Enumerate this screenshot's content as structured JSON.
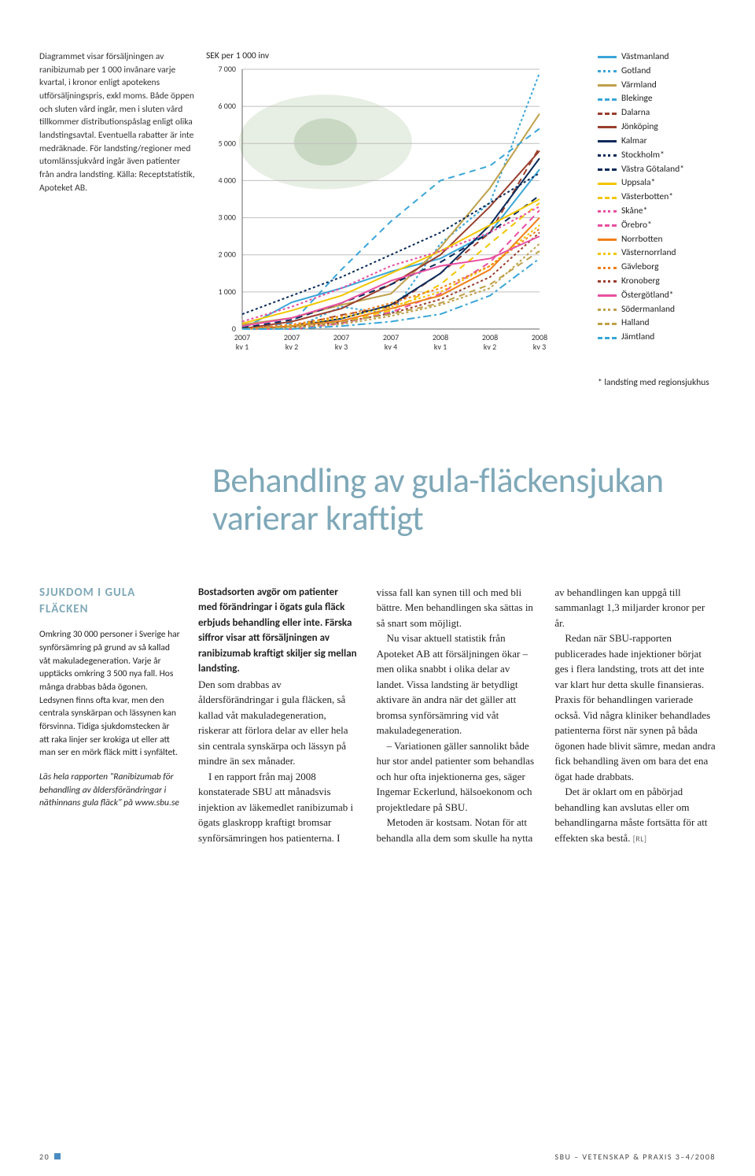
{
  "caption_text": "Diagrammet visar försäljningen av ranibizumab per 1 000 invånare varje kvartal, i kronor enligt apotekens utförsäljningspris, exkl moms. Både öppen och sluten vård ingår, men i sluten vård tillkommer distributionspåslag enligt olika landstingsavtal. Eventuella rabatter är inte medräknade. För landsting/regioner med utomlänssjukvård ingår även patienter från andra landsting. Källa: Receptstatistik, Apoteket AB.",
  "chart": {
    "type": "line",
    "y_title": "SEK per 1 000 inv",
    "ylim": [
      0,
      7000
    ],
    "ytick_step": 1000,
    "yticks": [
      "0",
      "1 000",
      "2 000",
      "3 000",
      "4 000",
      "5 000",
      "6 000",
      "7 000"
    ],
    "x_categories": [
      "2007\nkv 1",
      "2007\nkv 2",
      "2007\nkv 3",
      "2007\nkv 4",
      "2008\nkv 1",
      "2008\nkv 2",
      "2008\nkv 3"
    ],
    "background_color": "#ffffff",
    "grid_color": "#bfbfbf",
    "axis_color": "#666666",
    "tick_fontsize": 10,
    "watermark_eye": true,
    "series": [
      {
        "name": "Västmanland",
        "color": "#3aa6d8",
        "dash": "",
        "values": [
          0,
          720,
          1100,
          1550,
          1900,
          2600,
          4300
        ]
      },
      {
        "name": "Gotland",
        "color": "#3aa6d8",
        "dash": "3,3",
        "values": [
          0,
          0,
          600,
          400,
          2300,
          3400,
          6900
        ]
      },
      {
        "name": "Värmland",
        "color": "#bfa14a",
        "dash": "",
        "values": [
          120,
          300,
          650,
          950,
          2200,
          3800,
          5800
        ]
      },
      {
        "name": "Blekinge",
        "color": "#3aa6d8",
        "dash": "8,6",
        "values": [
          40,
          160,
          1600,
          2900,
          4000,
          4400,
          5400
        ]
      },
      {
        "name": "Dalarna",
        "color": "#9a3f2e",
        "dash": "8,6",
        "values": [
          30,
          80,
          380,
          600,
          1500,
          2600,
          4900
        ]
      },
      {
        "name": "Jönköping",
        "color": "#9a3f2e",
        "dash": "",
        "values": [
          10,
          200,
          550,
          1200,
          2000,
          3300,
          4800
        ]
      },
      {
        "name": "Kalmar",
        "color": "#0a2a5a",
        "dash": "",
        "values": [
          0,
          70,
          280,
          650,
          1500,
          2800,
          4600
        ]
      },
      {
        "name": "Stockholm*",
        "color": "#0a2a5a",
        "dash": "3,3",
        "values": [
          400,
          900,
          1400,
          2000,
          2600,
          3400,
          4200
        ]
      },
      {
        "name": "Västra Götaland*",
        "color": "#0a2a5a",
        "dash": "8,6",
        "values": [
          30,
          250,
          700,
          1200,
          1800,
          2600,
          3600
        ]
      },
      {
        "name": "Uppsala*",
        "color": "#f2c600",
        "dash": "",
        "values": [
          150,
          500,
          900,
          1500,
          2100,
          2800,
          3500
        ]
      },
      {
        "name": "Västerbotten*",
        "color": "#f2c600",
        "dash": "8,6",
        "values": [
          0,
          60,
          200,
          500,
          1200,
          2300,
          3400
        ]
      },
      {
        "name": "Skåne*",
        "color": "#e94fa0",
        "dash": "3,3",
        "values": [
          200,
          600,
          1100,
          1700,
          2100,
          2600,
          3300
        ]
      },
      {
        "name": "Örebro*",
        "color": "#e94fa0",
        "dash": "8,6",
        "values": [
          0,
          0,
          150,
          450,
          950,
          1800,
          3200
        ]
      },
      {
        "name": "Norrbotten",
        "color": "#f07f1a",
        "dash": "",
        "values": [
          0,
          80,
          220,
          550,
          900,
          1600,
          3000
        ]
      },
      {
        "name": "Västernorrland",
        "color": "#f2c600",
        "dash": "3,3",
        "values": [
          0,
          100,
          300,
          600,
          1000,
          1700,
          2800
        ]
      },
      {
        "name": "Gävleborg",
        "color": "#f07f1a",
        "dash": "3,3",
        "values": [
          0,
          120,
          350,
          700,
          1100,
          1700,
          2700
        ]
      },
      {
        "name": "Kronoberg",
        "color": "#9a3f2e",
        "dash": "3,3",
        "values": [
          0,
          50,
          180,
          420,
          800,
          1400,
          2600
        ]
      },
      {
        "name": "Östergötland*",
        "color": "#e94fa0",
        "dash": "",
        "values": [
          80,
          300,
          700,
          1300,
          1700,
          1900,
          2500
        ]
      },
      {
        "name": "Södermanland",
        "color": "#bfa14a",
        "dash": "3,3",
        "values": [
          0,
          30,
          130,
          350,
          650,
          1100,
          2300
        ]
      },
      {
        "name": "Halland",
        "color": "#bfa14a",
        "dash": "8,6",
        "values": [
          0,
          70,
          190,
          400,
          700,
          1200,
          2100
        ]
      },
      {
        "name": "Jämtland",
        "color": "#3aa6d8",
        "dash": "10,4,3,4",
        "values": [
          0,
          0,
          80,
          200,
          400,
          900,
          1900
        ]
      }
    ]
  },
  "legend_note": "* landsting med regionsjukhus",
  "headline": "Behandling av gula-fläcken­sjukan varierar kraftigt",
  "sidebar": {
    "title": "SJUKDOM I GULA FLÄCKEN",
    "para1": "Omkring 30 000 personer i Sverige har synförsämring på grund av så kallad våt makuladegeneration. Varje år upptäcks omkring 3 500 nya fall. Hos många drabbas båda ögonen. Ledsynen finns ofta kvar, men den centrala synskärpan och lässynen kan försvinna. Tidiga sjukdomstecken är att raka linjer ser krokiga ut eller att man ser en mörk fläck mitt i synfältet.",
    "para2": "Läs hela rapporten \"Ranibizumab för behandling av åldersförändringar i näthinnans gula fläck\" på www.sbu.se"
  },
  "article": {
    "lead": "Bostadsorten avgör om patienter med förändringar i ögats gula fläck erbjuds behandling eller inte. Färska siffror visar att försäljningen av ranibizumab kraftigt skiljer sig mellan landsting.",
    "p1": "Den som drabbas av åldersförändringar i gula fläcken, så kallad våt makuladegeneration, riskerar att förlora delar av eller hela sin centrala synskärpa och lässyn på mindre än sex månader.",
    "p2": "I en rapport från maj 2008 konstaterade SBU att månadsvis injektion av läkemedlet ranibizumab i ögats glaskropp kraftigt bromsar synförsämringen hos patien­terna. I vissa fall kan synen till och med bli bättre. Men behandlingen ska sättas in så snart som möjligt.",
    "p3": "Nu visar aktuell statistik från Apoteket AB att försäljningen ökar – men olika snabbt i olika delar av landet. Vissa landsting är betydligt aktivare än andra när det gäller att bromsa synförsämring vid våt makuladegeneration.",
    "p4": "– Variationen gäller sannolikt både hur stor andel patienter som behandlas och hur ofta injektionerna ges, säger Ingemar Eckerlund, hälsoekonom och projektledare på SBU.",
    "p5": "Metoden är kostsam. Notan för att behandla alla dem som skulle ha nytta av behandlingen kan uppgå till sammanlagt 1,3 miljarder kronor per år.",
    "p6": "Redan när SBU-rapporten publicerades hade injektioner börjat ges i flera landsting, trots att det inte var klart hur detta skulle finansieras. Praxis för behandlingen varierade också. Vid några kliniker behandlades patienterna först när synen på båda ögonen hade blivit sämre, medan andra fick behandling även om bara det ena ögat hade drabbats.",
    "p7": "Det är oklart om en påbörjad behandling kan avslutas eller om behandlingarna måste fortsätta för att effekten ska bestå.",
    "byline": "[RL]"
  },
  "footer": {
    "page_no": "20",
    "right": "SBU – VETENSKAP & PRAXIS  3–4/2008"
  },
  "colors": {
    "headline": "#7fa8b8",
    "accent_square": "#4a8cc2"
  }
}
